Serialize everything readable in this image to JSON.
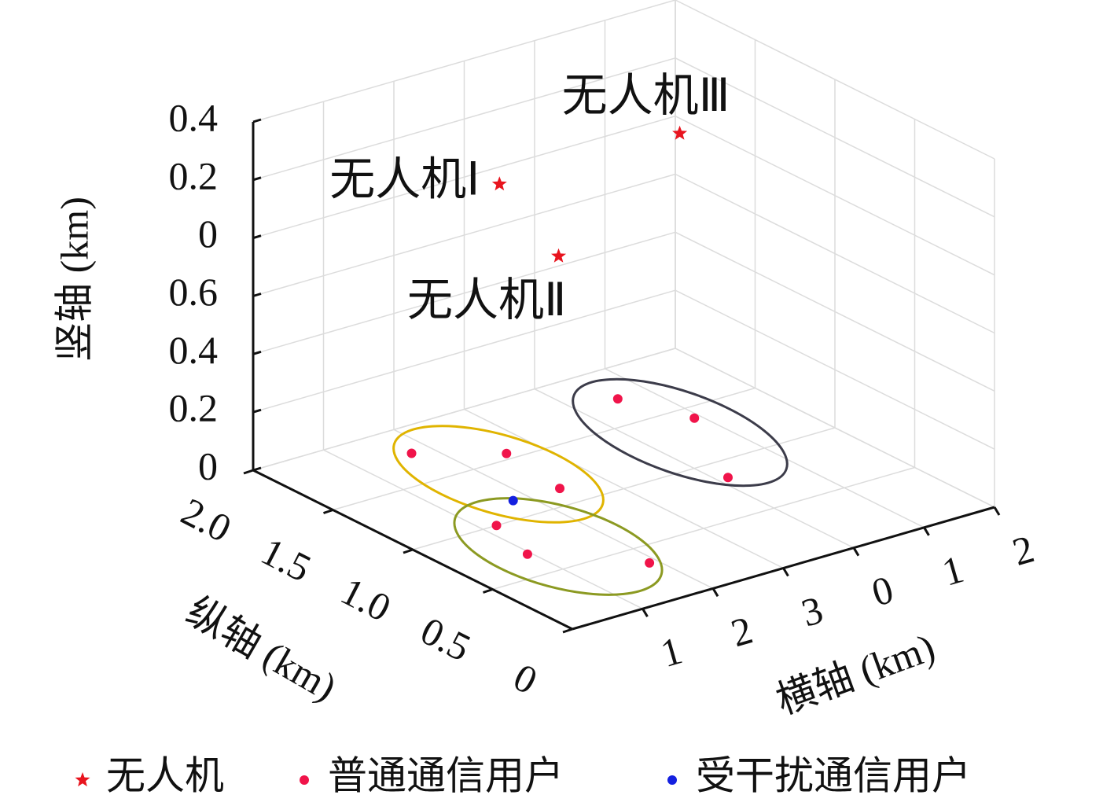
{
  "chart_data": {
    "type": "scatter3d",
    "xlabel": "横轴 (km)",
    "ylabel": "纵轴 (km)",
    "zlabel": "竖轴 (km)",
    "xlim": [
      0,
      6
    ],
    "ylim": [
      0,
      2
    ],
    "zlim": [
      0,
      1.2
    ],
    "xticks": [
      {
        "value": 1,
        "label": "1"
      },
      {
        "value": 2,
        "label": "2"
      },
      {
        "value": 3,
        "label": "3"
      },
      {
        "value": 4,
        "label": "0"
      },
      {
        "value": 5,
        "label": "1"
      },
      {
        "value": 6,
        "label": "2"
      }
    ],
    "yticks": [
      0,
      0.5,
      {
        "value": 1,
        "label": "1.0"
      },
      1.5,
      {
        "value": 2,
        "label": "2.0"
      }
    ],
    "zticks": [
      0,
      0.2,
      0.4,
      0.6,
      {
        "value": 0.8,
        "label": "0"
      },
      {
        "value": 1.0,
        "label": "0.2"
      },
      {
        "value": 1.2,
        "label": "0.4"
      }
    ],
    "grid": true,
    "series": [
      {
        "name": "无人机",
        "color": "#e8141e",
        "marker": "star",
        "x": [
          2.14,
          1.37,
          4.52
        ],
        "y": [
          1.4,
          0.69,
          1.32
        ],
        "z": [
          1.0,
          1.0,
          1.03
        ]
      },
      {
        "name": "普通通信用户",
        "color": "#f0144a",
        "marker": "dot",
        "x": [
          1.73,
          2.58,
          2.43,
          1.19,
          0.95,
          1.89,
          4.57,
          4.91,
          4.14
        ],
        "y": [
          1.77,
          1.55,
          1.15,
          1.0,
          0.7,
          0.35,
          1.73,
          1.4,
          0.85
        ],
        "z": [
          0,
          0,
          0,
          0,
          0,
          0,
          0,
          0,
          0
        ]
      },
      {
        "name": "受干扰通信用户",
        "color": "#1420e0",
        "marker": "dot",
        "x": [
          1.79
        ],
        "y": [
          1.16
        ],
        "z": [
          0
        ]
      }
    ],
    "annotations": [
      "无人机Ⅰ",
      "无人机Ⅱ",
      "无人机Ⅲ"
    ]
  }
}
